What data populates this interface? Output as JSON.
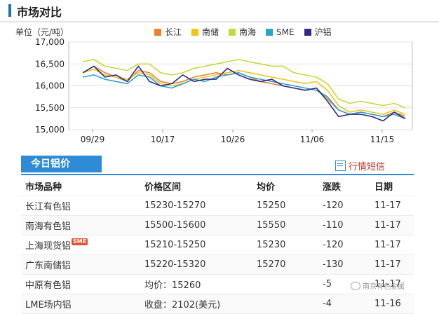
{
  "header": {
    "title": "市场对比"
  },
  "chart_data": {
    "type": "line",
    "unit_label": "单位（元/吨）",
    "x_ticks": [
      "09/29",
      "10/17",
      "10/26",
      "11/06",
      "11/15"
    ],
    "y_ticks": [
      "17,000",
      "16,500",
      "16,000",
      "15,500",
      "15,000"
    ],
    "ylim": [
      15000,
      17000
    ],
    "grid": true,
    "legend_position": "top",
    "series": [
      {
        "name": "长江",
        "color": "#e8832b",
        "values": [
          16300,
          16450,
          16300,
          16200,
          16100,
          16350,
          16300,
          16100,
          16050,
          16100,
          16200,
          16250,
          16300,
          16250,
          16300,
          16200,
          16100,
          16050,
          16000,
          15950,
          15900,
          15950,
          15700,
          15450,
          15350,
          15400,
          15350,
          15300,
          15400,
          15300
        ]
      },
      {
        "name": "南储",
        "color": "#f0c419",
        "values": [
          16300,
          16380,
          16250,
          16200,
          16150,
          16300,
          16250,
          16050,
          16000,
          16050,
          16150,
          16200,
          16250,
          16300,
          16350,
          16300,
          16250,
          16200,
          16150,
          16100,
          16050,
          16100,
          15900,
          15550,
          15400,
          15450,
          15400,
          15350,
          15450,
          15350
        ]
      },
      {
        "name": "南海",
        "color": "#c5d93a",
        "values": [
          16550,
          16600,
          16450,
          16400,
          16350,
          16500,
          16500,
          16300,
          16250,
          16300,
          16400,
          16450,
          16500,
          16550,
          16600,
          16550,
          16500,
          16450,
          16450,
          16300,
          16250,
          16200,
          16050,
          15700,
          15600,
          15650,
          15600,
          15550,
          15600,
          15500
        ]
      },
      {
        "name": "SME",
        "color": "#2aa3c9",
        "values": [
          16200,
          16250,
          16150,
          16100,
          16050,
          16250,
          16200,
          16000,
          15950,
          16050,
          16150,
          16100,
          16200,
          16250,
          16300,
          16200,
          16150,
          16100,
          16050,
          16000,
          15950,
          15900,
          15750,
          15450,
          15350,
          15400,
          15350,
          15300,
          15350,
          15250
        ]
      },
      {
        "name": "沪铝",
        "color": "#2f2b8c",
        "values": [
          16300,
          16450,
          16200,
          16250,
          16100,
          16450,
          16100,
          16000,
          16050,
          16250,
          16100,
          16150,
          16150,
          16400,
          16250,
          16150,
          16100,
          16150,
          16000,
          15950,
          15900,
          15950,
          15650,
          15300,
          15350,
          15350,
          15300,
          15200,
          15400,
          15250
        ]
      }
    ]
  },
  "today": {
    "tab_label": "今日铝价",
    "sms_label": "行情短信",
    "headers": [
      "市场品种",
      "价格区间",
      "均价",
      "涨跌",
      "日期"
    ],
    "badge": "SME",
    "rows": [
      {
        "name": "长江有色铝",
        "range": "15230-15270",
        "avg": "15250",
        "change": "-120",
        "date": "11-17"
      },
      {
        "name": "南海有色铝",
        "range": "15500-15600",
        "avg": "15550",
        "change": "-110",
        "date": "11-17"
      },
      {
        "name": "上海现货铝",
        "range": "15210-15250",
        "avg": "15230",
        "change": "-120",
        "date": "11-17"
      },
      {
        "name": "广东南储铝",
        "range": "15220-15320",
        "avg": "15270",
        "change": "-130",
        "date": "11-17"
      },
      {
        "name": "中原有色铝",
        "range": "均价：15260",
        "avg": "",
        "change": "-5",
        "date": "11-17"
      },
      {
        "name": "LME场内铝",
        "range": "收盘：2102(美元)",
        "avg": "",
        "change": "-4",
        "date": "11-16"
      }
    ]
  },
  "watermark": "南京有色金属"
}
